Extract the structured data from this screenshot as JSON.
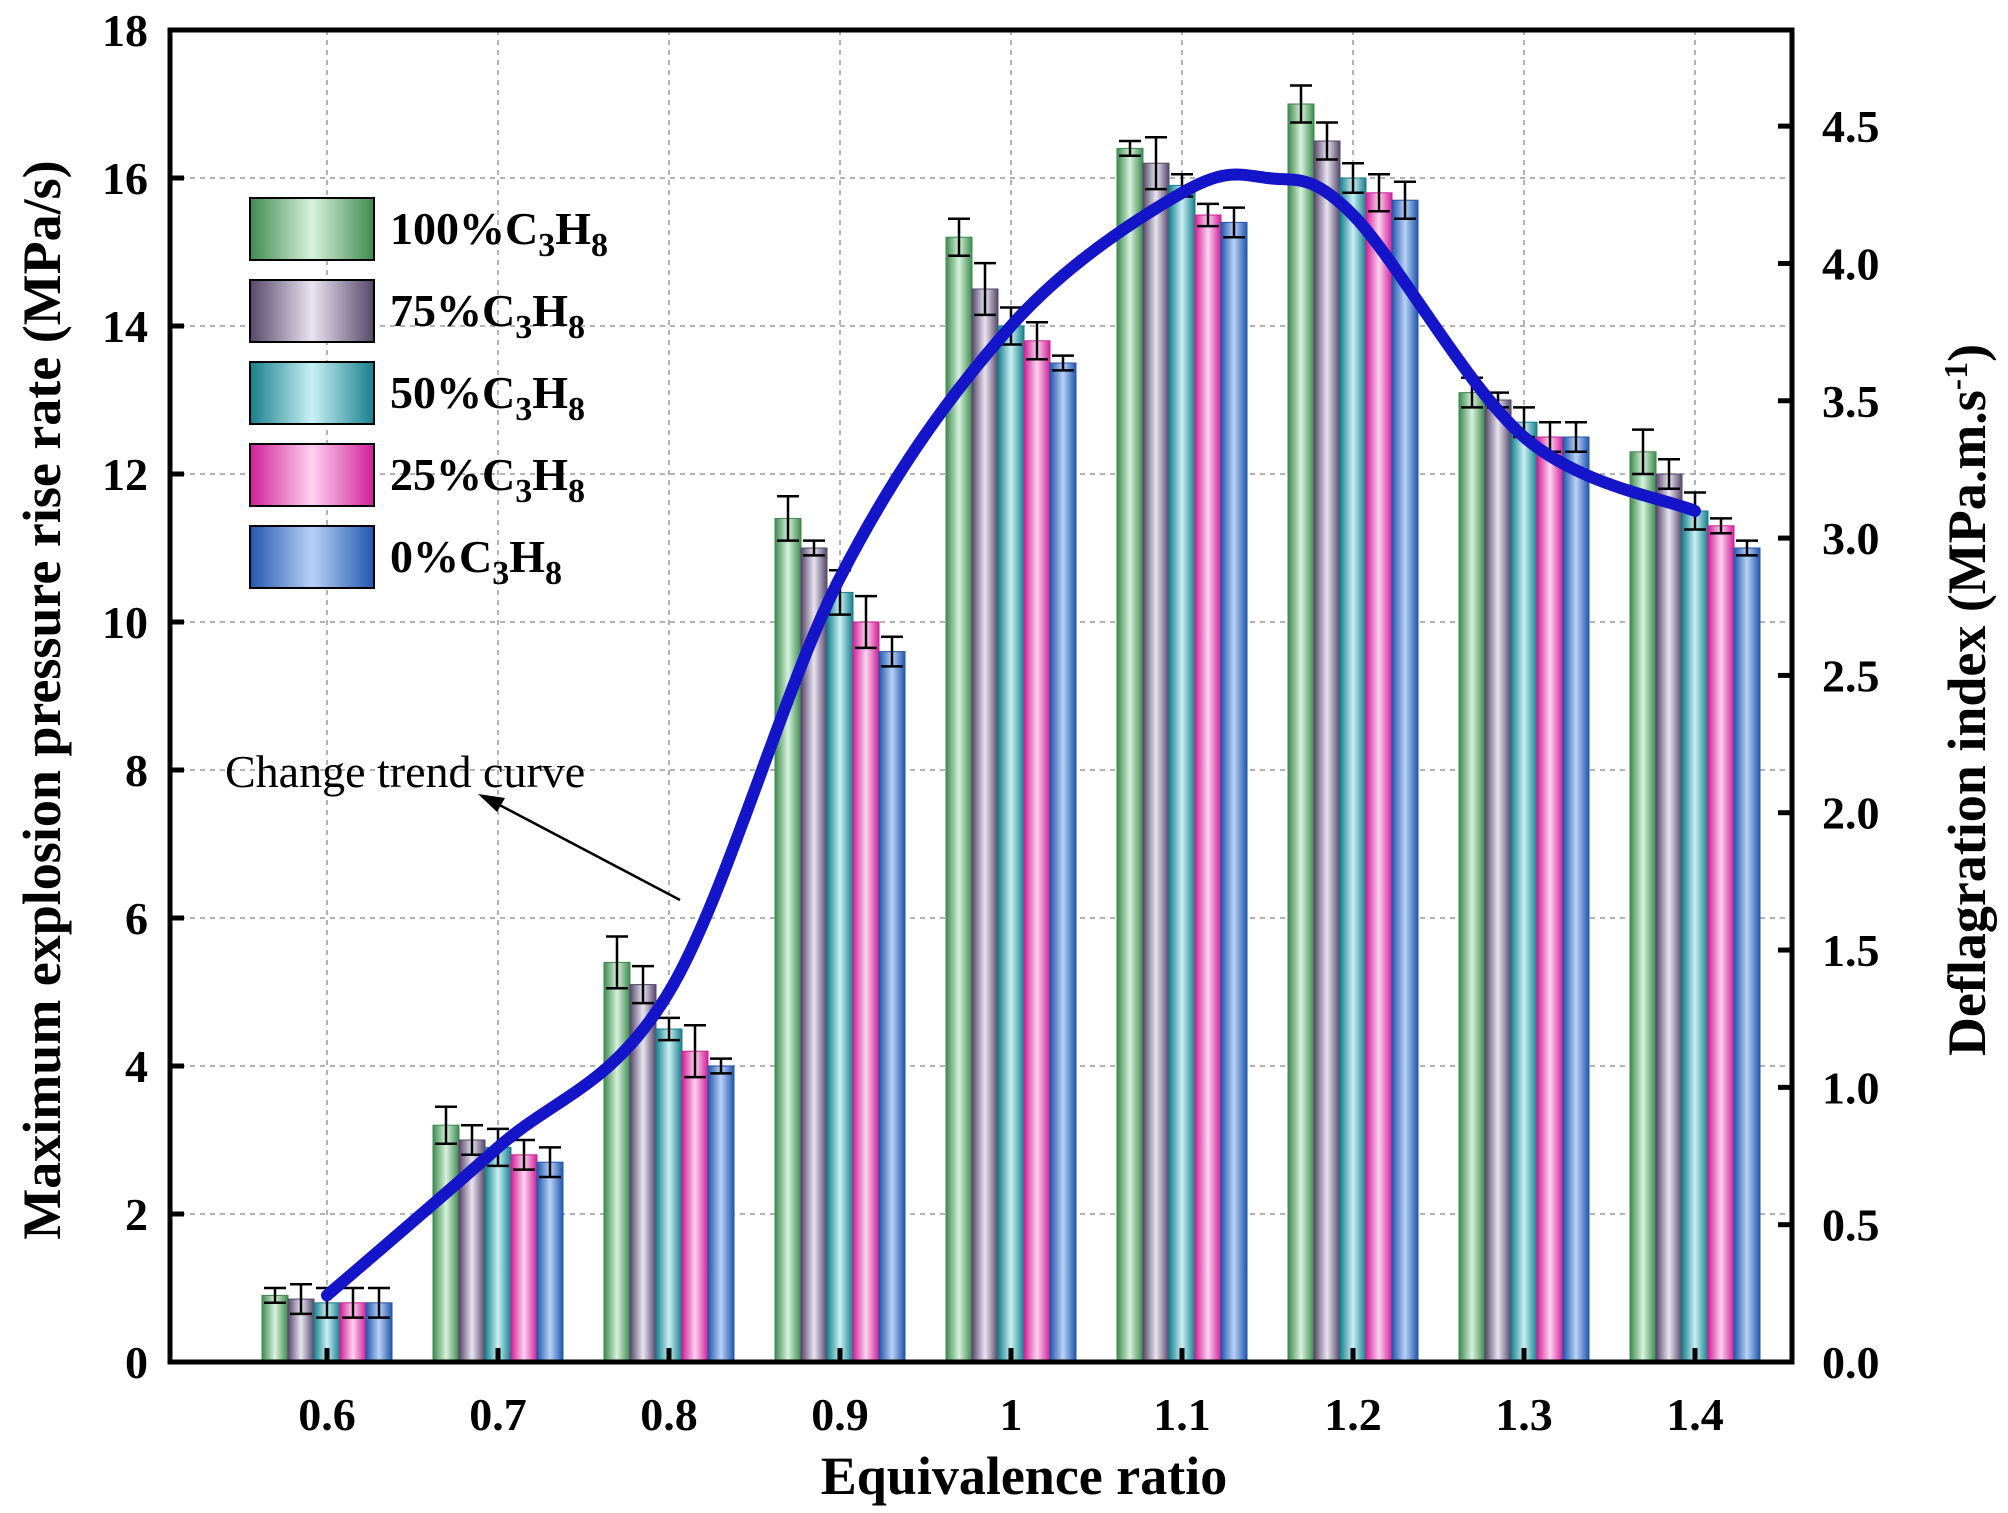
{
  "chart_data": {
    "type": "bar",
    "categories": [
      "0.6",
      "0.7",
      "0.8",
      "0.9",
      "1",
      "1.1",
      "1.2",
      "1.3",
      "1.4"
    ],
    "series": [
      {
        "name": "100%C3H8",
        "label": {
          "prefix": "100%C",
          "sub1": "3",
          "mid": "H",
          "sub2": "8"
        },
        "values": [
          0.9,
          3.2,
          5.4,
          11.4,
          15.2,
          16.4,
          17.0,
          13.1,
          12.3
        ],
        "errors": [
          0.1,
          0.25,
          0.35,
          0.3,
          0.25,
          0.1,
          0.25,
          0.2,
          0.3
        ],
        "colors": [
          "#3e8a4f",
          "#d7f2dc"
        ]
      },
      {
        "name": "75%C3H8",
        "label": {
          "prefix": "75%C",
          "sub1": "3",
          "mid": "H",
          "sub2": "8"
        },
        "values": [
          0.85,
          3.0,
          5.1,
          11.0,
          14.5,
          16.2,
          16.5,
          13.0,
          12.0
        ],
        "errors": [
          0.2,
          0.2,
          0.25,
          0.1,
          0.35,
          0.35,
          0.25,
          0.1,
          0.2
        ],
        "colors": [
          "#56476a",
          "#e9e4f0"
        ]
      },
      {
        "name": "50%C3H8",
        "label": {
          "prefix": "50%C",
          "sub1": "3",
          "mid": "H",
          "sub2": "8"
        },
        "values": [
          0.8,
          2.9,
          4.5,
          10.4,
          14.0,
          15.9,
          16.0,
          12.7,
          11.5
        ],
        "errors": [
          0.2,
          0.25,
          0.15,
          0.3,
          0.25,
          0.15,
          0.2,
          0.2,
          0.25
        ],
        "colors": [
          "#177f8c",
          "#c9f1f5"
        ]
      },
      {
        "name": "25%C3H8",
        "label": {
          "prefix": "25%C",
          "sub1": "3",
          "mid": "H",
          "sub2": "8"
        },
        "values": [
          0.8,
          2.8,
          4.2,
          10.0,
          13.8,
          15.5,
          15.8,
          12.5,
          11.3
        ],
        "errors": [
          0.2,
          0.2,
          0.35,
          0.35,
          0.25,
          0.15,
          0.25,
          0.2,
          0.1
        ],
        "colors": [
          "#d01f97",
          "#fdd3f0"
        ]
      },
      {
        "name": "0%C3H8",
        "label": {
          "prefix": "0%C",
          "sub1": "3",
          "mid": "H",
          "sub2": "8"
        },
        "values": [
          0.8,
          2.7,
          4.0,
          9.6,
          13.5,
          15.4,
          15.7,
          12.5,
          11.0
        ],
        "errors": [
          0.2,
          0.2,
          0.1,
          0.2,
          0.1,
          0.2,
          0.25,
          0.2,
          0.1
        ],
        "colors": [
          "#2256ad",
          "#b8d2f6"
        ]
      }
    ],
    "trend_curve": {
      "name": "Change trend curve",
      "x": [
        0.6,
        0.7,
        0.8,
        0.9,
        1.0,
        1.1,
        1.15,
        1.2,
        1.3,
        1.4
      ],
      "y": [
        0.9,
        2.9,
        5.0,
        10.6,
        14.0,
        15.8,
        16.0,
        15.5,
        12.5,
        11.5
      ],
      "color": "#1414c8"
    },
    "xlabel": "Equivalence ratio",
    "ylabel": "Maximum explosion pressure rise rate (MPa/s)",
    "y2label": {
      "main": "Deflagration index (MPa.m.s",
      "sup": "-1",
      "close": ")"
    },
    "ylim": [
      0,
      18
    ],
    "yticks": [
      "0",
      "2",
      "4",
      "6",
      "8",
      "10",
      "12",
      "14",
      "16",
      "18"
    ],
    "y2lim": [
      0.0,
      4.85
    ],
    "y2ticks": [
      "0.0",
      "0.5",
      "1.0",
      "1.5",
      "2.0",
      "2.5",
      "3.0",
      "3.5",
      "4.0",
      "4.5"
    ],
    "grid": true,
    "legend_position": "top-left"
  }
}
